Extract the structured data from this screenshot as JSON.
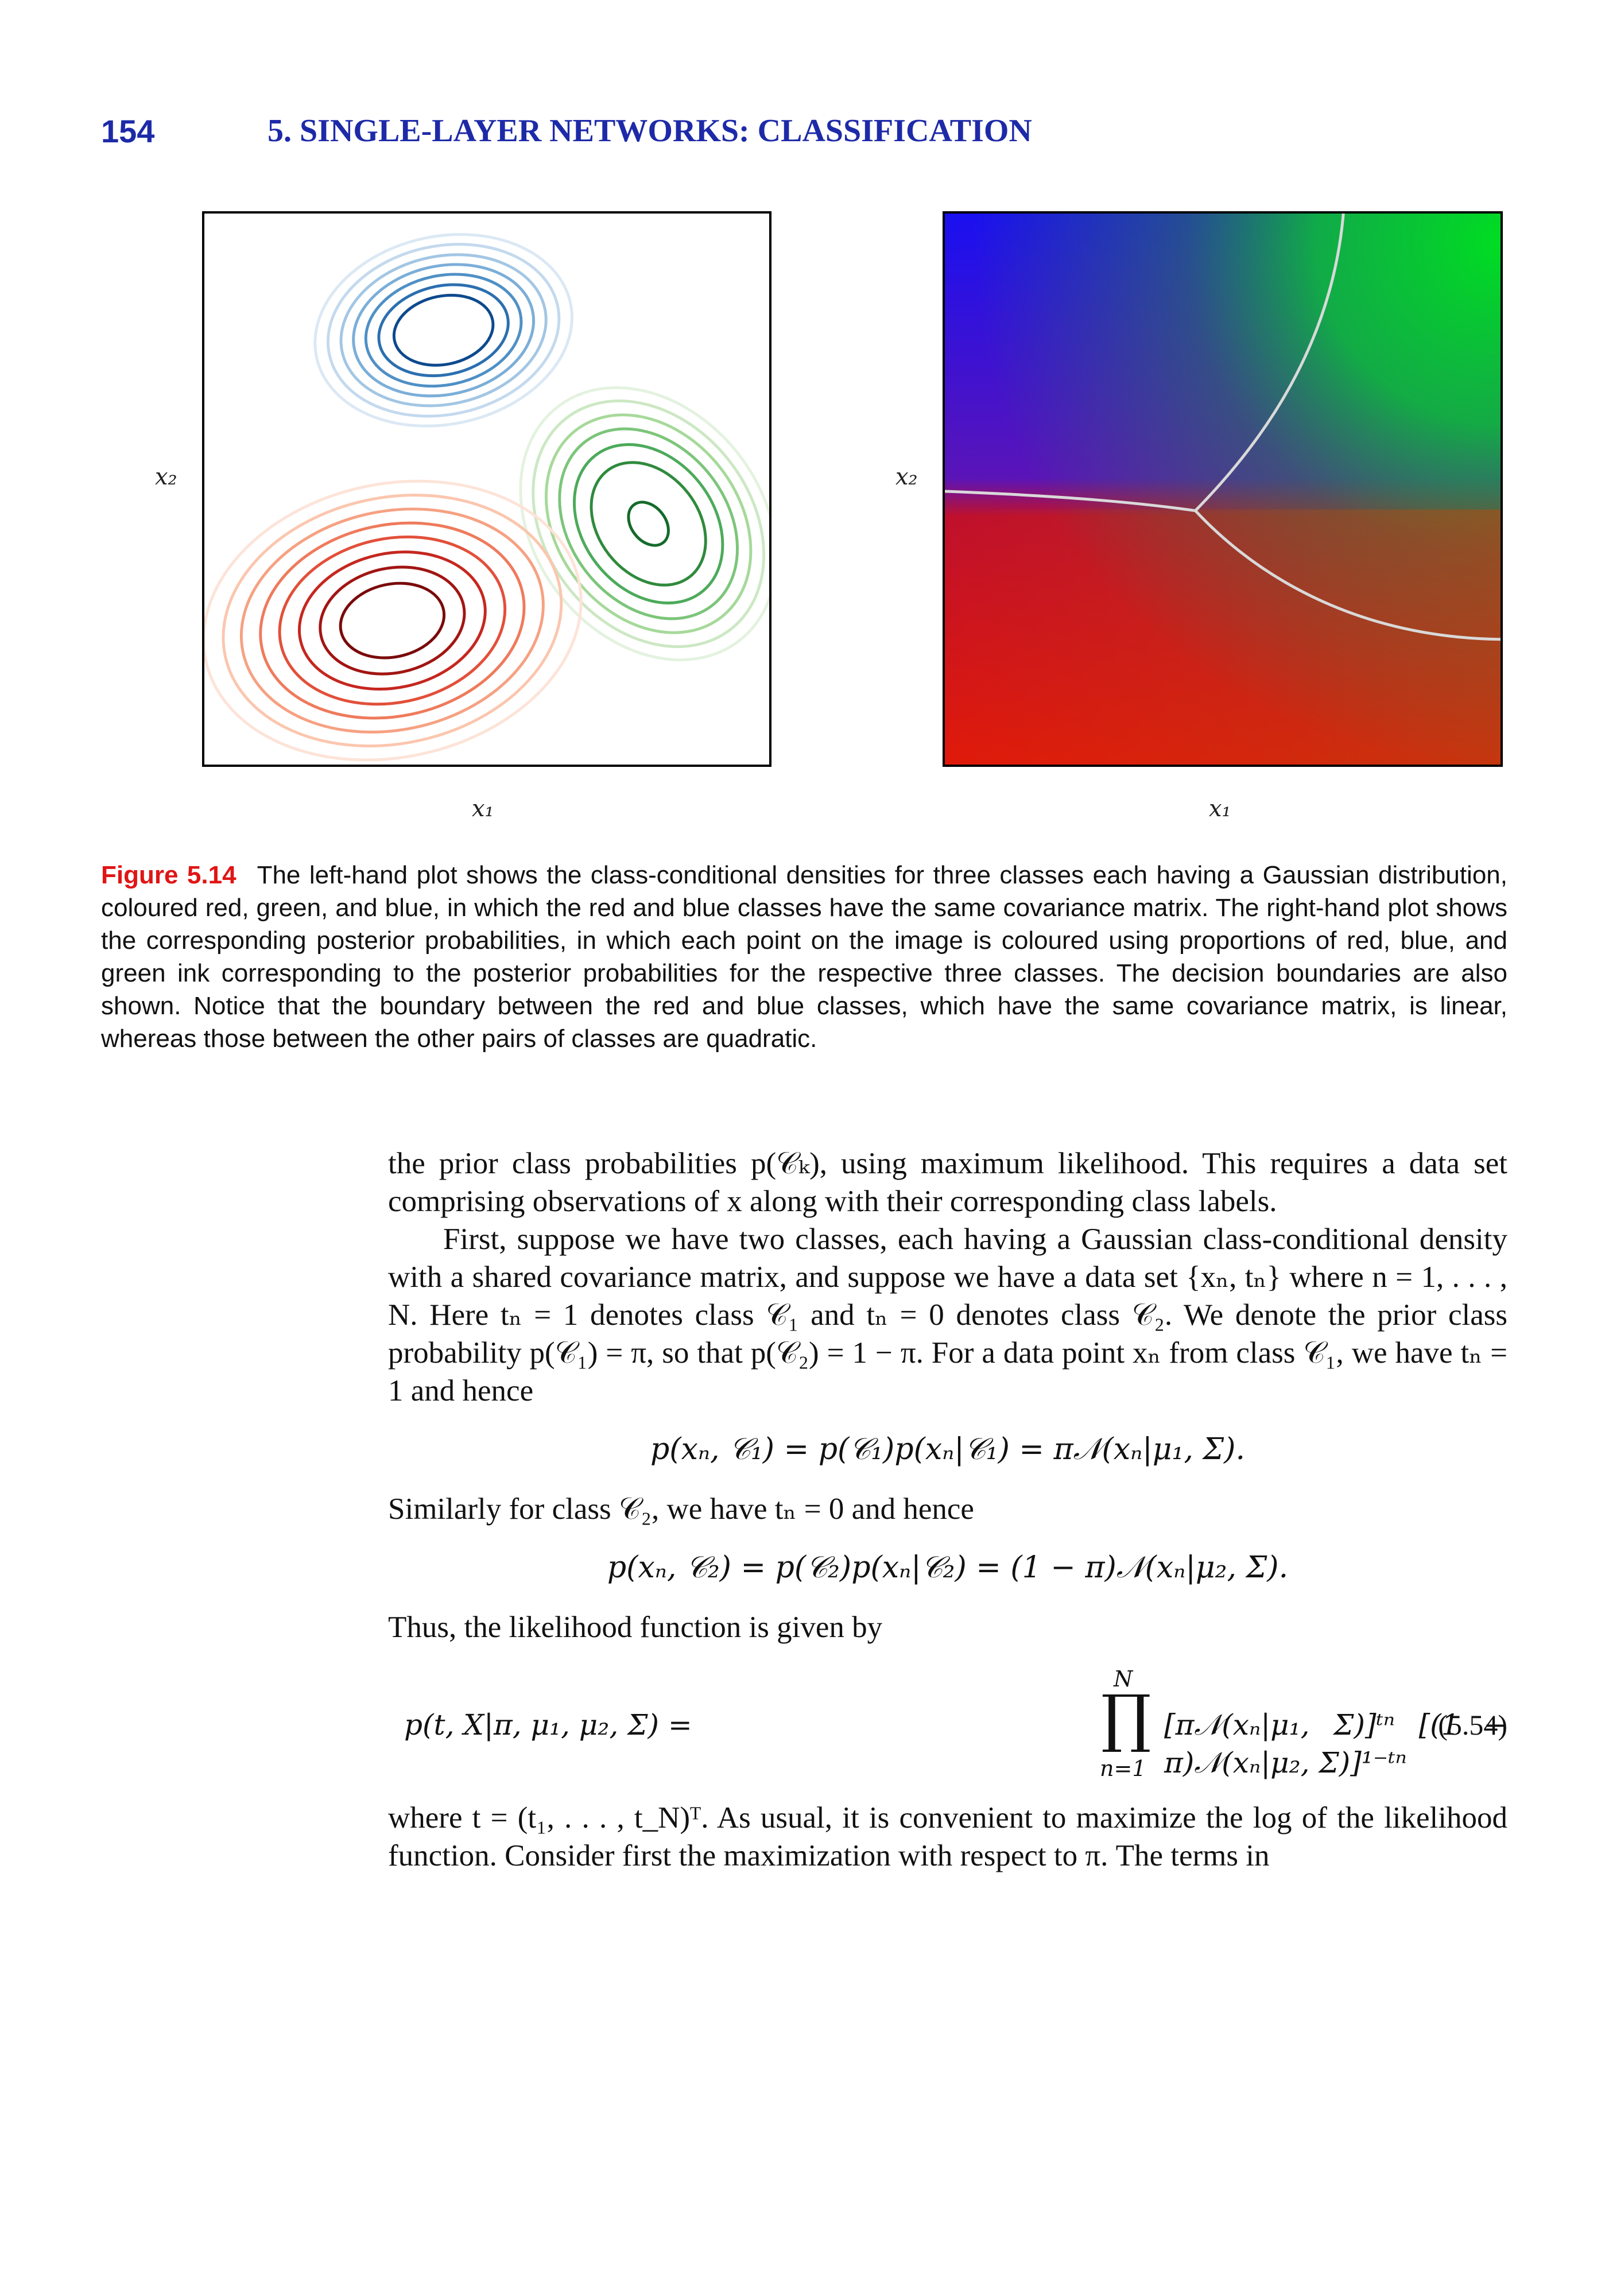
{
  "header": {
    "page_number": "154",
    "chapter_title": "5. SINGLE-LAYER NETWORKS: CLASSIFICATION"
  },
  "figure": {
    "left_plot": {
      "xlabel": "x₁",
      "ylabel": "x₂"
    },
    "right_plot": {
      "xlabel": "x₁",
      "ylabel": "x₂"
    },
    "colors": {
      "blue": "#1f4f9a",
      "green": "#2f8a3c",
      "red": "#8c0d0d",
      "boundary": "#d9d9d9"
    }
  },
  "caption": {
    "label": "Figure 5.14",
    "text": "The left-hand plot shows the class-conditional densities for three classes each having a Gaussian distribution, coloured red, green, and blue, in which the red and blue classes have the same covariance matrix. The right-hand plot shows the corresponding posterior probabilities, in which each point on the image is coloured using proportions of red, blue, and green ink corresponding to the posterior probabilities for the respective three classes. The decision boundaries are also shown. Notice that the boundary between the red and blue classes, which have the same covariance matrix, is linear, whereas those between the other pairs of classes are quadratic."
  },
  "body": {
    "p1": "the prior class probabilities p(𝒞ₖ), using maximum likelihood. This requires a data set comprising observations of x along with their corresponding class labels.",
    "p2": "First, suppose we have two classes, each having a Gaussian class-conditional density with a shared covariance matrix, and suppose we have a data set {xₙ, tₙ} where n = 1, . . . , N. Here tₙ = 1 denotes class 𝒞₁ and tₙ = 0 denotes class 𝒞₂. We denote the prior class probability p(𝒞₁) = π, so that p(𝒞₂) = 1 − π. For a data point xₙ from class 𝒞₁, we have tₙ = 1 and hence",
    "eq1": "p(xₙ, 𝒞₁) = p(𝒞₁)p(xₙ|𝒞₁) = π𝒩(xₙ|μ₁, Σ).",
    "p3": "Similarly for class 𝒞₂, we have tₙ = 0 and hence",
    "eq2": "p(xₙ, 𝒞₂) = p(𝒞₂)p(xₙ|𝒞₂) = (1 − π)𝒩(xₙ|μ₂, Σ).",
    "p4": "Thus, the likelihood function is given by",
    "eq3": {
      "lhs": "p(t, X|π, μ₁, μ₂, Σ) =",
      "prod_symbol": "∏",
      "prod_top": "N",
      "prod_bottom": "n=1",
      "rhs": "[π𝒩(xₙ|μ₁, Σ)]ᵗⁿ [(1 − π)𝒩(xₙ|μ₂, Σ)]¹⁻ᵗⁿ",
      "number": "(5.54)"
    },
    "p5": "where t = (t₁, . . . , t_N)ᵀ. As usual, it is convenient to maximize the log of the likelihood function. Consider first the maximization with respect to π. The terms in"
  }
}
